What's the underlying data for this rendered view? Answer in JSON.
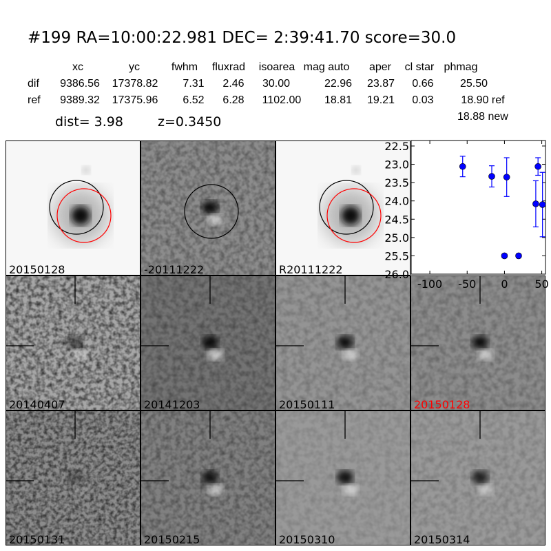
{
  "header": {
    "title": "#199   RA=10:00:22.981 DEC= 2:39:41.70      score=30.0"
  },
  "table": {
    "columns": [
      "xc",
      "yc",
      "fwhm",
      "fluxrad",
      "isoarea",
      "mag auto",
      "aper",
      "cl star",
      "phmag"
    ],
    "rows": [
      {
        "label": "dif",
        "values": [
          "9386.56",
          "17378.82",
          "7.31",
          "2.46",
          "30.00",
          "22.96",
          "23.87",
          "0.66",
          "25.50"
        ]
      },
      {
        "label": "ref",
        "values": [
          "9389.32",
          "17375.96",
          "6.52",
          "6.28",
          "1102.00",
          "18.81",
          "19.21",
          "0.03",
          "18.90 ref"
        ]
      }
    ],
    "extra_phmag": "18.88 new",
    "dist": "dist=  3.98",
    "z": "z=0.3450"
  },
  "stamps": [
    {
      "label": "20150128",
      "color": "#000000"
    },
    {
      "label": "-20111222",
      "color": "#000000"
    },
    {
      "label": "R20111222",
      "color": "#000000"
    },
    {
      "label": "20140407",
      "color": "#000000"
    },
    {
      "label": "20141203",
      "color": "#000000"
    },
    {
      "label": "20150111",
      "color": "#000000"
    },
    {
      "label": "20150128",
      "color": "#ff0000"
    },
    {
      "label": "20150131",
      "color": "#000000"
    },
    {
      "label": "20150215",
      "color": "#000000"
    },
    {
      "label": "20150310",
      "color": "#000000"
    },
    {
      "label": "20150314",
      "color": "#000000"
    }
  ],
  "chart_data": {
    "type": "scatter",
    "title": "",
    "xlabel": "",
    "ylabel": "",
    "xlim": [
      -125,
      55
    ],
    "ylim": [
      26.0,
      22.35
    ],
    "y_inverted": true,
    "grid": false,
    "marker_color": "#0000ff",
    "xticks": [
      "-100",
      "-50",
      "0",
      "50"
    ],
    "xtick_values": [
      -100,
      -50,
      0,
      50
    ],
    "yticks": [
      "22.5",
      "23.0",
      "23.5",
      "24.0",
      "24.5",
      "25.0",
      "25.5",
      "26.0"
    ],
    "ytick_values": [
      22.5,
      23.0,
      23.5,
      24.0,
      24.5,
      25.0,
      25.5,
      26.0
    ],
    "points": [
      {
        "x": -56,
        "y": 23.06,
        "err": 0.28
      },
      {
        "x": -17,
        "y": 23.33,
        "err": 0.29
      },
      {
        "x": 3,
        "y": 23.35,
        "err": 0.53
      },
      {
        "x": 0,
        "y": 25.5,
        "err": 0.05
      },
      {
        "x": 19,
        "y": 25.5,
        "err": 0.05
      },
      {
        "x": 42,
        "y": 24.08,
        "err": 0.63
      },
      {
        "x": 45,
        "y": 23.06,
        "err": 0.24
      },
      {
        "x": 51,
        "y": 24.1,
        "err": 0.88
      }
    ]
  }
}
